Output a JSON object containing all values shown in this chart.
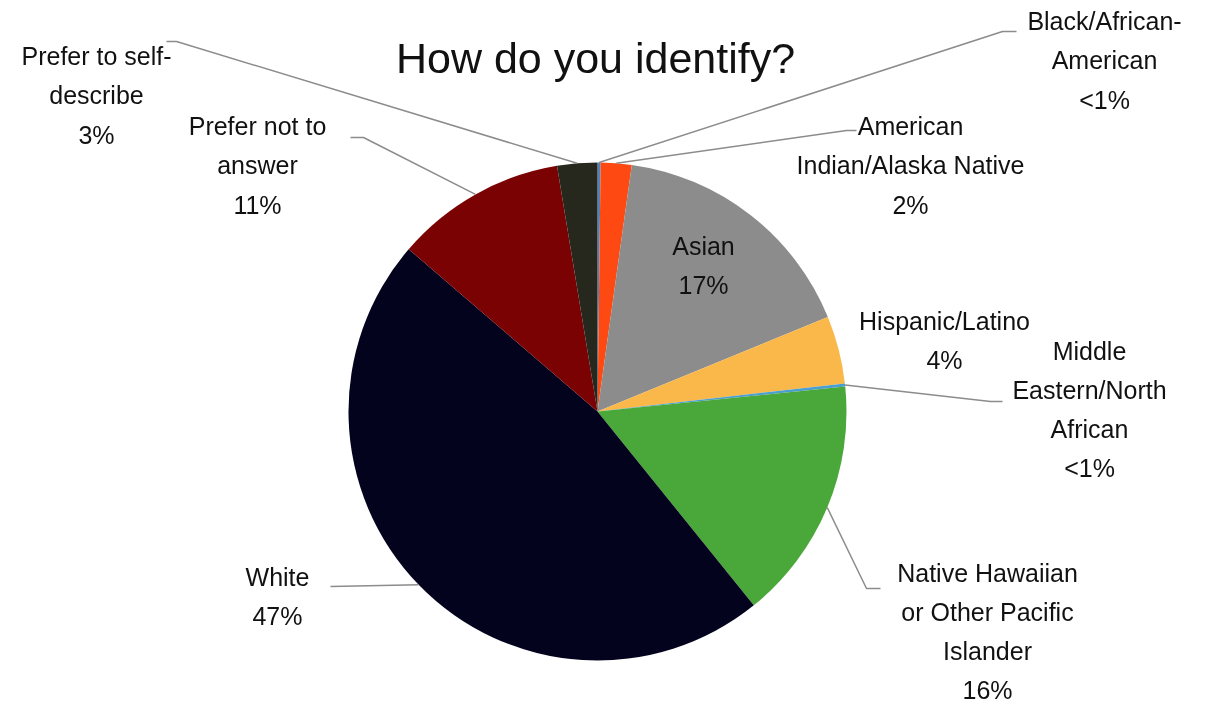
{
  "chart_data": {
    "type": "pie",
    "title": "How do you identify?",
    "categories": [
      "Black/African-American",
      "American Indian/Alaska Native",
      "Asian",
      "Hispanic/Latino",
      "Middle Eastern/North African",
      "Native Hawaiian or Other Pacific Islander",
      "White",
      "Prefer not to answer",
      "Prefer to self-describe"
    ],
    "values": [
      0.2,
      2,
      16.6,
      4.4,
      0.2,
      15.8,
      47.1,
      11.1,
      2.6
    ],
    "colors": [
      "#4f81bd",
      "#fe4a12",
      "#8c8c8c",
      "#fbb84a",
      "#4a9fd0",
      "#4aa83a",
      "#03031e",
      "#7a0202",
      "#26281e"
    ],
    "value_labels": [
      "<1%",
      "2%",
      "17%",
      "4%",
      "<1%",
      "16%",
      "47%",
      "11%",
      "3%"
    ]
  }
}
